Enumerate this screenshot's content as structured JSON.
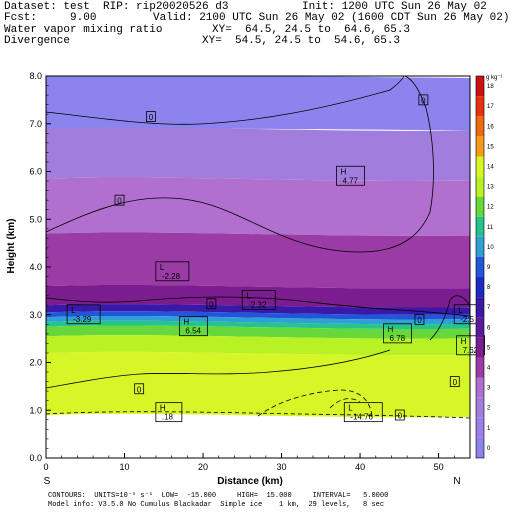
{
  "header": {
    "dataset": "Dataset: test  RIP: rip20020526 d3",
    "init": "Init: 1200 UTC Sun 26 May 02",
    "fcst": "Fcst:     9.00",
    "valid": "Valid: 2100 UTC Sun 26 May 02 (1600 CDT Sun 26 May 02)",
    "field1": "Water vapor mixing ratio",
    "xy1": "XY=  64.5, 24.5 to  64.6, 65.3",
    "field2": "Divergence",
    "xy2": "XY=  54.5, 24.5 to  54.6, 65.3"
  },
  "footer": {
    "line1": "CONTOURS:  UNITS=10⁻⁵ s⁻¹  LOW=  -15.000     HIGH=  15.000     INTERVAL=   5.0000",
    "line2": "Model info: V3.5.0 No Cumulus Blackadar  Simple ice    1 km,  29 levels,   8 sec"
  },
  "colors": {
    "mix_bands": [
      "#8b84ee",
      "#a17ede",
      "#b170cf",
      "#9b3ba6",
      "#7b1d8e",
      "#3a18a8",
      "#2255d9",
      "#2f9fd6",
      "#26c48c",
      "#66d83c",
      "#b8f224",
      "#d6f627"
    ],
    "ground": "#ffffff",
    "contour": "#000000"
  },
  "chart_data": {
    "type": "contour",
    "xlabel": "Distance (km)",
    "ylabel": "Height (km)",
    "xlim": [
      0,
      54
    ],
    "ylim": [
      0,
      8
    ],
    "x_ticks": [
      0,
      10,
      20,
      30,
      40,
      50
    ],
    "y_ticks": [
      "0.0",
      "1.0",
      "2.0",
      "3.0",
      "4.0",
      "5.0",
      "6.0",
      "7.0",
      "8.0"
    ],
    "end_labels": [
      "S",
      "N"
    ],
    "colorbar": {
      "title": "g kg⁻¹",
      "levels": [
        0,
        1,
        2,
        3,
        4,
        5,
        6,
        7,
        8,
        9,
        10,
        11,
        12,
        13,
        14,
        15,
        16,
        17,
        18
      ],
      "colors": [
        "#8b84ee",
        "#9a80ea",
        "#a17ede",
        "#b170cf",
        "#9b3ba6",
        "#7b1d8e",
        "#5a1a9a",
        "#3a18a8",
        "#1d29c4",
        "#2255d9",
        "#2f9fd6",
        "#26c48c",
        "#66d83c",
        "#b8f224",
        "#d6f627",
        "#f59b1a",
        "#ee6a12",
        "#e53312",
        "#cc1111"
      ]
    },
    "mixing_ratio_bands": [
      {
        "top": 8.0,
        "bottom": 6.9
      },
      {
        "top": 6.9,
        "bottom": 5.85
      },
      {
        "top": 5.85,
        "bottom": 4.7
      },
      {
        "top": 4.7,
        "bottom": 3.6
      },
      {
        "top": 3.6,
        "bottom": 3.2
      },
      {
        "top": 3.2,
        "bottom": 3.05
      },
      {
        "top": 3.05,
        "bottom": 2.95
      },
      {
        "top": 2.95,
        "bottom": 2.85
      },
      {
        "top": 2.85,
        "bottom": 2.75
      },
      {
        "top": 2.75,
        "bottom": 2.55
      },
      {
        "top": 2.55,
        "bottom": 2.2
      },
      {
        "top": 2.2,
        "bottom": 0.9
      }
    ],
    "terrain_height": 0.9,
    "annotations": [
      {
        "text": "H",
        "value": "4.77",
        "x": 37.5,
        "y": 5.9
      },
      {
        "text": "L",
        "value": "-2.28",
        "x": 14.5,
        "y": 3.9
      },
      {
        "text": "L",
        "value": "-2.32",
        "x": 25.5,
        "y": 3.3
      },
      {
        "text": "L",
        "value": "-3.29",
        "x": 3.2,
        "y": 3.0
      },
      {
        "text": "H",
        "value": "6.54",
        "x": 17.5,
        "y": 2.75
      },
      {
        "text": "H",
        "value": "6.78",
        "x": 43.5,
        "y": 2.6
      },
      {
        "text": "L",
        "value": "-2.5",
        "x": 52.5,
        "y": 3.0
      },
      {
        "text": "H",
        "value": "7.62",
        "x": 52.8,
        "y": 2.35
      },
      {
        "text": "H",
        "value": ".18",
        "x": 14.5,
        "y": 0.95
      },
      {
        "text": "L",
        "value": "-14.76",
        "x": 38.5,
        "y": 0.95
      }
    ],
    "zero_labels": [
      {
        "text": "0",
        "x": 13.3,
        "y": 7.15
      },
      {
        "text": "0",
        "x": 9.3,
        "y": 5.4
      },
      {
        "text": "0",
        "x": 48.0,
        "y": 7.5
      },
      {
        "text": "0",
        "x": 21.0,
        "y": 3.23
      },
      {
        "text": "0",
        "x": 47.5,
        "y": 2.9
      },
      {
        "text": "0",
        "x": 11.8,
        "y": 1.45
      },
      {
        "text": "0",
        "x": 52.0,
        "y": 1.6
      },
      {
        "text": "0",
        "x": 45.0,
        "y": 0.9
      }
    ]
  }
}
